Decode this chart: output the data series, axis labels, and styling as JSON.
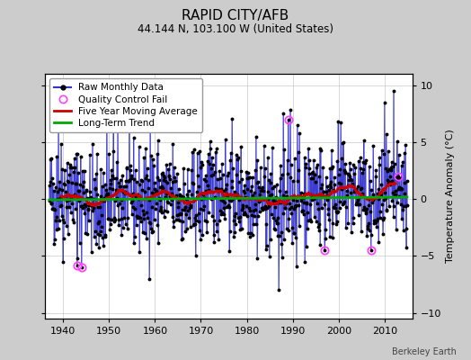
{
  "title": "RAPID CITY/AFB",
  "subtitle": "44.144 N, 103.100 W (United States)",
  "ylabel": "Temperature Anomaly (°C)",
  "watermark": "Berkeley Earth",
  "ylim": [
    -10.5,
    11.0
  ],
  "xlim": [
    1936,
    2016
  ],
  "xticks": [
    1940,
    1950,
    1960,
    1970,
    1980,
    1990,
    2000,
    2010
  ],
  "yticks": [
    -10,
    -5,
    0,
    5,
    10
  ],
  "start_year": 1937,
  "end_year": 2014,
  "raw_color": "#3333cc",
  "raw_fill_color": "#8888ee",
  "dot_color": "#000000",
  "ma_color": "#cc0000",
  "trend_color": "#00aa00",
  "qc_color": "#ff44ff",
  "background_color": "#ffffff",
  "outer_background": "#cccccc",
  "seed": 42,
  "qc_fail_indices": [
    72,
    84,
    624,
    720,
    840,
    912
  ],
  "trend_slope": 0.003,
  "trend_intercept": 0.05,
  "title_fontsize": 11,
  "subtitle_fontsize": 8.5,
  "tick_fontsize": 8,
  "legend_fontsize": 7.5,
  "ylabel_fontsize": 8
}
